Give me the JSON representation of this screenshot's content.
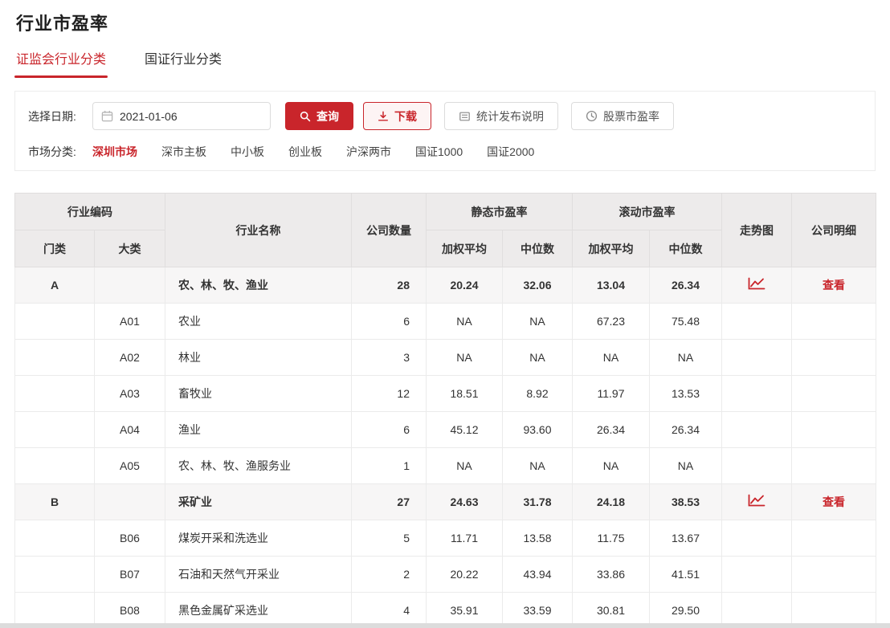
{
  "page": {
    "title": "行业市盈率"
  },
  "tabs": [
    {
      "label": "证监会行业分类",
      "active": true
    },
    {
      "label": "国证行业分类",
      "active": false
    }
  ],
  "filters": {
    "date_label": "选择日期:",
    "date_value": "2021-01-06",
    "query_label": "查询",
    "download_label": "下载",
    "notes_label": "统计发布说明",
    "stock_pe_label": "股票市盈率",
    "market_label": "市场分类:",
    "markets": [
      {
        "label": "深圳市场",
        "active": true
      },
      {
        "label": "深市主板",
        "active": false
      },
      {
        "label": "中小板",
        "active": false
      },
      {
        "label": "创业板",
        "active": false
      },
      {
        "label": "沪深两市",
        "active": false
      },
      {
        "label": "国证1000",
        "active": false
      },
      {
        "label": "国证2000",
        "active": false
      }
    ]
  },
  "table": {
    "headers": {
      "industry_code": "行业编码",
      "sector": "门类",
      "category": "大类",
      "industry_name": "行业名称",
      "company_count": "公司数量",
      "static_pe": "静态市盈率",
      "rolling_pe": "滚动市盈率",
      "weighted_avg": "加权平均",
      "median": "中位数",
      "trend_chart": "走势图",
      "company_detail": "公司明细"
    },
    "view_label": "查看",
    "rows": [
      {
        "sector": "A",
        "category": "",
        "name": "农、林、牧、渔业",
        "count": "28",
        "static_wavg": "20.24",
        "static_med": "32.06",
        "rolling_wavg": "13.04",
        "rolling_med": "26.34",
        "group": true
      },
      {
        "sector": "",
        "category": "A01",
        "name": "农业",
        "count": "6",
        "static_wavg": "NA",
        "static_med": "NA",
        "rolling_wavg": "67.23",
        "rolling_med": "75.48",
        "group": false
      },
      {
        "sector": "",
        "category": "A02",
        "name": "林业",
        "count": "3",
        "static_wavg": "NA",
        "static_med": "NA",
        "rolling_wavg": "NA",
        "rolling_med": "NA",
        "group": false
      },
      {
        "sector": "",
        "category": "A03",
        "name": "畜牧业",
        "count": "12",
        "static_wavg": "18.51",
        "static_med": "8.92",
        "rolling_wavg": "11.97",
        "rolling_med": "13.53",
        "group": false
      },
      {
        "sector": "",
        "category": "A04",
        "name": "渔业",
        "count": "6",
        "static_wavg": "45.12",
        "static_med": "93.60",
        "rolling_wavg": "26.34",
        "rolling_med": "26.34",
        "group": false
      },
      {
        "sector": "",
        "category": "A05",
        "name": "农、林、牧、渔服务业",
        "count": "1",
        "static_wavg": "NA",
        "static_med": "NA",
        "rolling_wavg": "NA",
        "rolling_med": "NA",
        "group": false
      },
      {
        "sector": "B",
        "category": "",
        "name": "采矿业",
        "count": "27",
        "static_wavg": "24.63",
        "static_med": "31.78",
        "rolling_wavg": "24.18",
        "rolling_med": "38.53",
        "group": true
      },
      {
        "sector": "",
        "category": "B06",
        "name": "煤炭开采和洗选业",
        "count": "5",
        "static_wavg": "11.71",
        "static_med": "13.58",
        "rolling_wavg": "11.75",
        "rolling_med": "13.67",
        "group": false
      },
      {
        "sector": "",
        "category": "B07",
        "name": "石油和天然气开采业",
        "count": "2",
        "static_wavg": "20.22",
        "static_med": "43.94",
        "rolling_wavg": "33.86",
        "rolling_med": "41.51",
        "group": false
      },
      {
        "sector": "",
        "category": "B08",
        "name": "黑色金属矿采选业",
        "count": "4",
        "static_wavg": "35.91",
        "static_med": "33.59",
        "rolling_wavg": "30.81",
        "rolling_med": "29.50",
        "group": false
      }
    ]
  },
  "colors": {
    "accent_red": "#c9252b",
    "header_bg": "#edebeb",
    "group_row_bg": "#f7f6f6",
    "border": "#ebebeb"
  },
  "icons": {
    "calendar": "calendar-icon",
    "search": "search-icon",
    "download": "download-icon",
    "document": "document-icon",
    "clock": "clock-icon",
    "trend": "trend-chart-icon"
  }
}
